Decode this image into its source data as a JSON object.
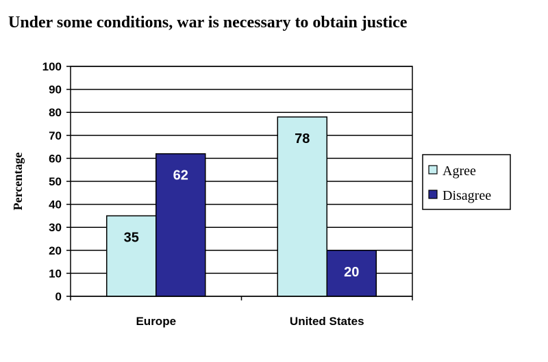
{
  "chart_data": {
    "type": "bar",
    "title": "Under some conditions, war is necessary to obtain justice",
    "xlabel": "",
    "ylabel": "Percentage",
    "ylim": [
      0,
      100
    ],
    "yticks": [
      0,
      10,
      20,
      30,
      40,
      50,
      60,
      70,
      80,
      90,
      100
    ],
    "categories": [
      "Europe",
      "United States"
    ],
    "series": [
      {
        "name": "Agree",
        "values": [
          35,
          78
        ],
        "color": "#c6eef0",
        "label_color": "#000000"
      },
      {
        "name": "Disagree",
        "values": [
          62,
          20
        ],
        "color": "#2b2b96",
        "label_color": "#ffffff"
      }
    ],
    "grid": true,
    "legend_position": "right",
    "data_labels": true
  }
}
